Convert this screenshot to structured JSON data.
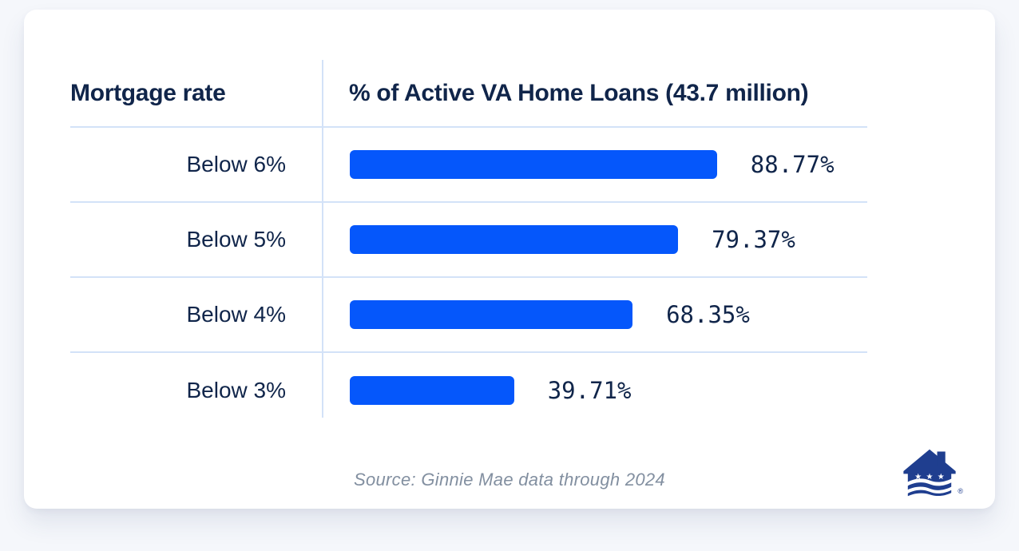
{
  "table": {
    "headers": [
      "Mortgage rate",
      "% of Active VA Home Loans (43.7 million)"
    ]
  },
  "chart_data": {
    "type": "bar",
    "orientation": "horizontal",
    "title": "% of Active VA Home Loans (43.7 million)",
    "category_axis_label": "Mortgage rate",
    "categories": [
      "Below 6%",
      "Below 5%",
      "Below 4%",
      "Below 3%"
    ],
    "values": [
      88.77,
      79.37,
      68.35,
      39.71
    ],
    "value_labels": [
      "88.77%",
      "79.37%",
      "68.35%",
      "39.71%"
    ],
    "xlim": [
      0,
      100
    ],
    "grid": false,
    "legend": "none",
    "bar_color": "#0557FB"
  },
  "source_caption": "Source: Ginnie Mae data through 2024",
  "logo": {
    "name": "veterans-united-home-loans-house-logo",
    "registered_mark": "®",
    "color": "#1F3E8F"
  },
  "colors": {
    "text_navy": "#10254A",
    "bar_blue": "#0557FB",
    "divider_blue": "#D3E2F8",
    "source_gray": "#828FA0",
    "page_background": "#F5F7FB",
    "card_background": "#FFFFFF"
  }
}
